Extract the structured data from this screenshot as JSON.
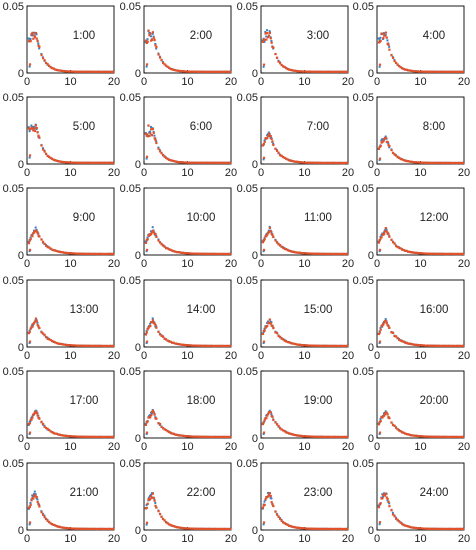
{
  "figure": {
    "layout": {
      "rows": 6,
      "cols": 4
    },
    "x_ticks": [
      0,
      10,
      20
    ],
    "y_ticks": [
      0,
      0.05
    ],
    "xlim": [
      0,
      20
    ],
    "ylim": [
      0,
      0.05
    ],
    "colors": {
      "series_a": "#3a7fc1",
      "series_b": "#e1522a",
      "axes": "#000000"
    }
  },
  "chart_data": {
    "type": "scatter",
    "note_source": "24 small-multiple panels, two overlaid point series per panel",
    "panels": [
      {
        "label": "1:00",
        "peak": 0.032,
        "shape": "early"
      },
      {
        "label": "2:00",
        "peak": 0.032,
        "shape": "early"
      },
      {
        "label": "3:00",
        "peak": 0.031,
        "shape": "early"
      },
      {
        "label": "4:00",
        "peak": 0.031,
        "shape": "early"
      },
      {
        "label": "5:00",
        "peak": 0.032,
        "shape": "early"
      },
      {
        "label": "6:00",
        "peak": 0.027,
        "shape": "early"
      },
      {
        "label": "7:00",
        "peak": 0.023,
        "shape": "mid"
      },
      {
        "label": "8:00",
        "peak": 0.02,
        "shape": "mid"
      },
      {
        "label": "9:00",
        "peak": 0.019,
        "shape": "late"
      },
      {
        "label": "10:00",
        "peak": 0.019,
        "shape": "late"
      },
      {
        "label": "11:00",
        "peak": 0.019,
        "shape": "late"
      },
      {
        "label": "12:00",
        "peak": 0.019,
        "shape": "late"
      },
      {
        "label": "13:00",
        "peak": 0.02,
        "shape": "late"
      },
      {
        "label": "14:00",
        "peak": 0.02,
        "shape": "late"
      },
      {
        "label": "15:00",
        "peak": 0.02,
        "shape": "late"
      },
      {
        "label": "16:00",
        "peak": 0.02,
        "shape": "late"
      },
      {
        "label": "17:00",
        "peak": 0.02,
        "shape": "late"
      },
      {
        "label": "18:00",
        "peak": 0.02,
        "shape": "late"
      },
      {
        "label": "19:00",
        "peak": 0.02,
        "shape": "late"
      },
      {
        "label": "20:00",
        "peak": 0.02,
        "shape": "late"
      },
      {
        "label": "21:00",
        "peak": 0.028,
        "shape": "mid"
      },
      {
        "label": "22:00",
        "peak": 0.027,
        "shape": "mid"
      },
      {
        "label": "23:00",
        "peak": 0.028,
        "shape": "mid"
      },
      {
        "label": "24:00",
        "peak": 0.029,
        "shape": "mid"
      }
    ]
  }
}
